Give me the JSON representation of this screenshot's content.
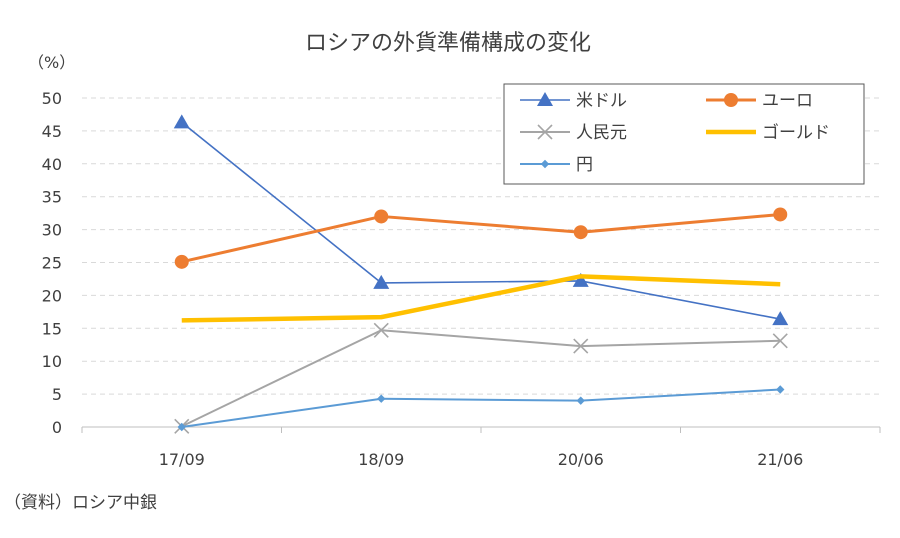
{
  "chart_data": {
    "type": "line",
    "title": "ロシアの外貨準備構成の変化",
    "ylabel": "（%）",
    "xlabel": "",
    "categories": [
      "17/09",
      "18/09",
      "20/06",
      "21/06"
    ],
    "ylim": [
      0,
      50
    ],
    "yticks": [
      0,
      5,
      10,
      15,
      20,
      25,
      30,
      35,
      40,
      45,
      50
    ],
    "grid": true,
    "legend_position": "top-right",
    "series": [
      {
        "name": "米ドル",
        "values": [
          46.3,
          21.9,
          22.2,
          16.4
        ],
        "color": "#4472C4",
        "marker": "triangle"
      },
      {
        "name": "ユーロ",
        "values": [
          25.1,
          32.0,
          29.6,
          32.3
        ],
        "color": "#ED7D31",
        "marker": "circle"
      },
      {
        "name": "人民元",
        "values": [
          0.1,
          14.7,
          12.3,
          13.1
        ],
        "color": "#A5A5A5",
        "marker": "x"
      },
      {
        "name": "ゴールド",
        "values": [
          16.2,
          16.7,
          22.9,
          21.7
        ],
        "color": "#FFC000",
        "marker": "none"
      },
      {
        "name": "円",
        "values": [
          0.0,
          4.3,
          4.0,
          5.7
        ],
        "color": "#5B9BD5",
        "marker": "diamond"
      }
    ]
  },
  "source_note": "（資料）ロシア中銀"
}
